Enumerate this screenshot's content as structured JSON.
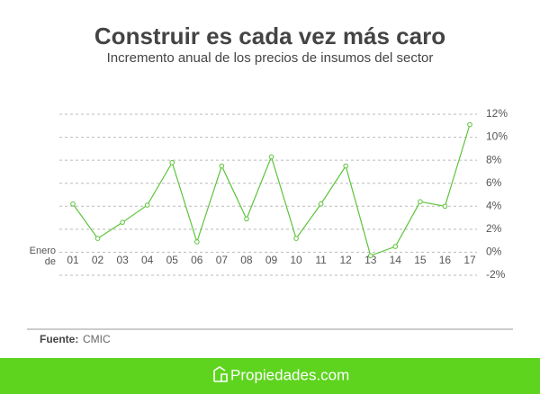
{
  "chart_data": {
    "type": "line",
    "title": "Construir es cada vez más caro",
    "subtitle": "Incremento anual de los precios de insumos del sector",
    "x_label": [
      "Enero",
      "de"
    ],
    "categories": [
      "01",
      "02",
      "03",
      "04",
      "05",
      "06",
      "07",
      "08",
      "09",
      "10",
      "11",
      "12",
      "13",
      "14",
      "15",
      "16",
      "17"
    ],
    "values": [
      4.2,
      1.2,
      2.6,
      4.1,
      7.8,
      0.9,
      7.5,
      2.9,
      8.3,
      1.2,
      4.2,
      7.5,
      -0.3,
      0.5,
      4.4,
      4.0,
      11.1
    ],
    "color": "#5cc43a",
    "ylim": [
      -2,
      12
    ],
    "yticks": [
      {
        "value": -2,
        "label": "-2%"
      },
      {
        "value": 0,
        "label": "0%"
      },
      {
        "value": 2,
        "label": "2%"
      },
      {
        "value": 4,
        "label": "4%"
      },
      {
        "value": 6,
        "label": "6%"
      },
      {
        "value": 8,
        "label": "8%"
      },
      {
        "value": 10,
        "label": "10%"
      },
      {
        "value": 12,
        "label": "12%"
      }
    ],
    "grid": true
  },
  "source_label": "Fuente:",
  "source": "CMIC",
  "brand": "Propiedades.com"
}
